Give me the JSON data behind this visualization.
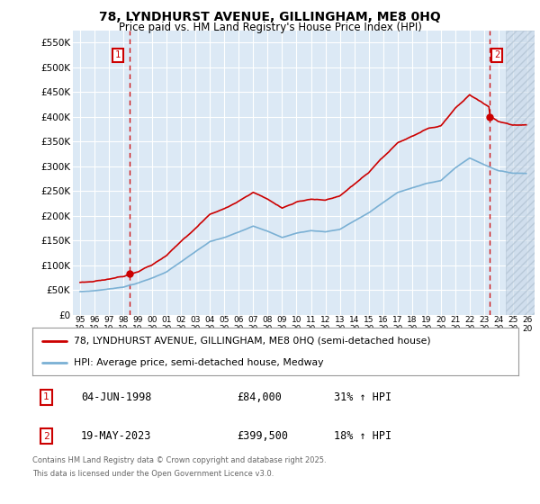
{
  "title_line1": "78, LYNDHURST AVENUE, GILLINGHAM, ME8 0HQ",
  "title_line2": "Price paid vs. HM Land Registry's House Price Index (HPI)",
  "legend_line1": "78, LYNDHURST AVENUE, GILLINGHAM, ME8 0HQ (semi-detached house)",
  "legend_line2": "HPI: Average price, semi-detached house, Medway",
  "footnote_line1": "Contains HM Land Registry data © Crown copyright and database right 2025.",
  "footnote_line2": "This data is licensed under the Open Government Licence v3.0.",
  "sale1_year": 1998.42,
  "sale1_price": 84000,
  "sale2_year": 2023.38,
  "sale2_price": 399500,
  "price_line_color": "#cc0000",
  "hpi_line_color": "#7ab0d4",
  "plot_bg_color": "#dce9f5",
  "grid_color": "#ffffff",
  "annotation_box_color": "#cc0000",
  "ylim_max": 575000,
  "yticks": [
    0,
    50000,
    100000,
    150000,
    200000,
    250000,
    300000,
    350000,
    400000,
    450000,
    500000,
    550000
  ],
  "xmin": 1994.5,
  "xmax": 2026.5,
  "hatch_start": 2024.5,
  "xtick_years": [
    1995,
    1996,
    1997,
    1998,
    1999,
    2000,
    2001,
    2002,
    2003,
    2004,
    2005,
    2006,
    2007,
    2008,
    2009,
    2010,
    2011,
    2012,
    2013,
    2014,
    2015,
    2016,
    2017,
    2018,
    2019,
    2020,
    2021,
    2022,
    2023,
    2024,
    2025,
    2026
  ]
}
